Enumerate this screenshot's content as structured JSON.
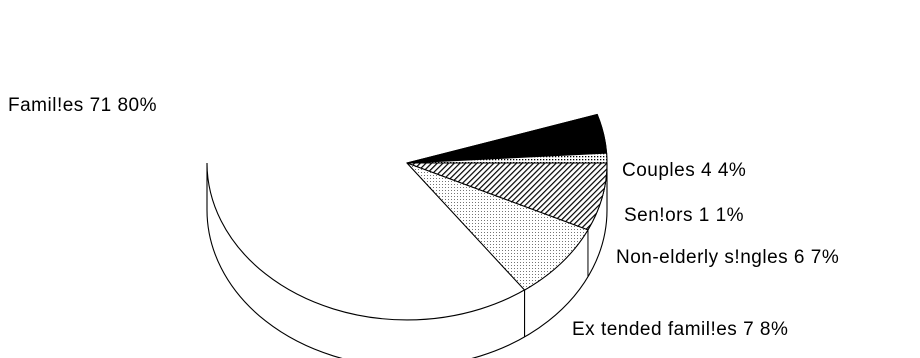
{
  "chart_data": {
    "type": "pie",
    "style": "3d",
    "categories": [
      "Families",
      "Couples",
      "Seniors",
      "Non-elderly singles",
      "Extended families"
    ],
    "values": [
      71,
      4,
      1,
      6,
      7
    ],
    "percents": [
      80,
      4,
      1,
      7,
      8
    ],
    "slice_labels": [
      "Famil!es 71 80%",
      "Couples 4 4%",
      "Sen!ors 1 1%",
      "Non-elderly s!ngles 6 7%",
      "Ex tended famil!es 7 8%"
    ],
    "fills": [
      "diagonal-hatch",
      "black",
      "dots",
      "cross-hatch",
      "stipple"
    ],
    "title": "",
    "legend": "none"
  }
}
